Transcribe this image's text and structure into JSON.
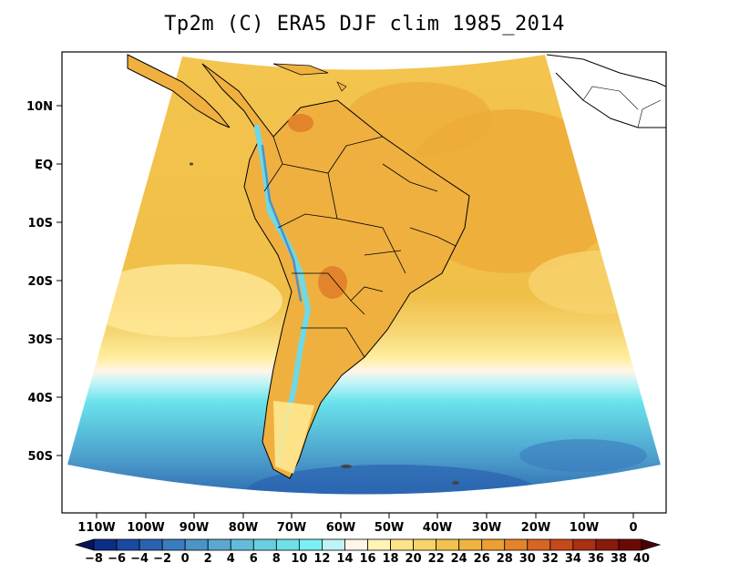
{
  "title": "Tp2m (C) ERA5 DJF clim 1985_2014",
  "map": {
    "variable": "Tp2m",
    "units": "C",
    "dataset": "ERA5",
    "season": "DJF",
    "period": "1985_2014",
    "lat_ticks": [
      "10N",
      "EQ",
      "10S",
      "20S",
      "30S",
      "40S",
      "50S"
    ],
    "lon_ticks": [
      "110W",
      "100W",
      "90W",
      "80W",
      "70W",
      "60W",
      "50W",
      "40W",
      "30W",
      "20W",
      "10W",
      "0"
    ]
  },
  "colorbar": {
    "labels": [
      "-8",
      "-6",
      "-4",
      "-2",
      "0",
      "2",
      "4",
      "6",
      "8",
      "10",
      "12",
      "14",
      "16",
      "18",
      "20",
      "22",
      "24",
      "26",
      "28",
      "30",
      "32",
      "34",
      "36",
      "38",
      "40"
    ],
    "colors": [
      "#08145a",
      "#0d2e86",
      "#1a4aa0",
      "#2a62b0",
      "#3a7cbd",
      "#4c94c8",
      "#5aa8d2",
      "#62bcd9",
      "#68cfe0",
      "#6ee0e8",
      "#7af0f4",
      "#bff4f6",
      "#fff5e8",
      "#fff3b5",
      "#ffe38a",
      "#f8d36a",
      "#f2c24f",
      "#efb440",
      "#ec9f32",
      "#e3832b",
      "#d76523",
      "#c5491a",
      "#aa2f13",
      "#8a1a0d",
      "#6a0a06",
      "#4a0203"
    ]
  }
}
